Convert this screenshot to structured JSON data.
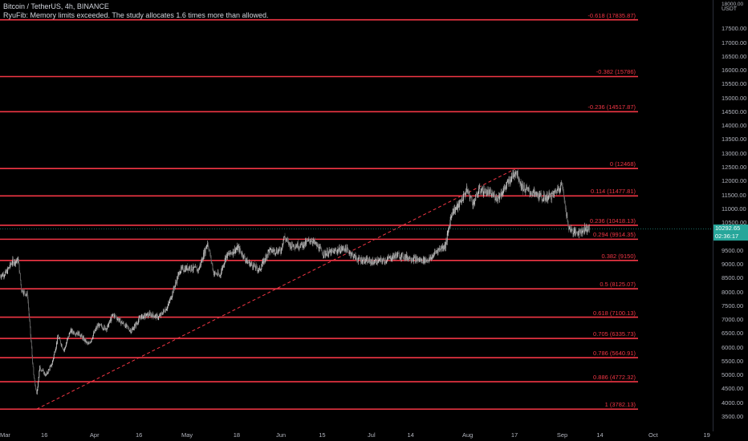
{
  "header": {
    "symbol": "Bitcoin / TetherUS, 4h, BINANCE",
    "study_warning": "RyuFib: Memory limits exceeded. The study allocates 1.6 times more than allowed."
  },
  "price_axis": {
    "currency": "USDT",
    "top_label": "18000.00",
    "ticks": [
      {
        "price": 18000,
        "label": "18000.00"
      },
      {
        "price": 17500,
        "label": "17500.00"
      },
      {
        "price": 17000,
        "label": "17000.00"
      },
      {
        "price": 16500,
        "label": "16500.00"
      },
      {
        "price": 16000,
        "label": "16000.00"
      },
      {
        "price": 15500,
        "label": "15500.00"
      },
      {
        "price": 15000,
        "label": "15000.00"
      },
      {
        "price": 14500,
        "label": "14500.00"
      },
      {
        "price": 14000,
        "label": "14000.00"
      },
      {
        "price": 13500,
        "label": "13500.00"
      },
      {
        "price": 13000,
        "label": "13000.00"
      },
      {
        "price": 12500,
        "label": "12500.00"
      },
      {
        "price": 12000,
        "label": "12000.00"
      },
      {
        "price": 11500,
        "label": "11500.00"
      },
      {
        "price": 11000,
        "label": "11000.00"
      },
      {
        "price": 10500,
        "label": "10500.00"
      },
      {
        "price": 9500,
        "label": "9500.00"
      },
      {
        "price": 9000,
        "label": "9000.00"
      },
      {
        "price": 8500,
        "label": "8500.00"
      },
      {
        "price": 8000,
        "label": "8000.00"
      },
      {
        "price": 7500,
        "label": "7500.00"
      },
      {
        "price": 7000,
        "label": "7000.00"
      },
      {
        "price": 6500,
        "label": "6500.00"
      },
      {
        "price": 6000,
        "label": "6000.00"
      },
      {
        "price": 5500,
        "label": "5500.00"
      },
      {
        "price": 5000,
        "label": "5000.00"
      },
      {
        "price": 4500,
        "label": "4500.00"
      },
      {
        "price": 4000,
        "label": "4000.00"
      },
      {
        "price": 3500,
        "label": "3500.00"
      }
    ],
    "current_price": {
      "value": 10292.65,
      "label": "10292.65",
      "color": "#26a69a"
    },
    "countdown": {
      "label": "02:36:17",
      "color": "#26a69a"
    }
  },
  "time_axis": {
    "labels": [
      "Mar",
      "16",
      "Apr",
      "16",
      "May",
      "18",
      "Jun",
      "15",
      "Jul",
      "14",
      "Aug",
      "17",
      "Sep",
      "14",
      "Oct",
      "19"
    ]
  },
  "colors": {
    "fib_line": "#f23645",
    "candle_up": "#c8c8c8",
    "candle_down": "#6a6a6a",
    "background": "#000000"
  },
  "chart_data": {
    "type": "line",
    "title": "Bitcoin / TetherUS, 4h, BINANCE",
    "ylim": [
      3300,
      18300
    ],
    "x_categories": [
      "Mar",
      "16",
      "Apr",
      "16",
      "May",
      "18",
      "Jun",
      "15",
      "Jul",
      "14",
      "Aug",
      "17",
      "Sep",
      "14",
      "Oct",
      "19"
    ],
    "fib_levels": [
      {
        "level": "-0.618",
        "price": 17835.87,
        "label": "-0.618 (17835.87)"
      },
      {
        "level": "-0.382",
        "price": 15786,
        "label": "-0.382 (15786)"
      },
      {
        "level": "-0.236",
        "price": 14517.87,
        "label": "-0.236 (14517.87)"
      },
      {
        "level": "0",
        "price": 12468,
        "label": "0 (12468)"
      },
      {
        "level": "0.114",
        "price": 11477.81,
        "label": "0.114 (11477.81)"
      },
      {
        "level": "0.236",
        "price": 10418.13,
        "label": "0.236 (10418.13)"
      },
      {
        "level": "0.294",
        "price": 9914.35,
        "label": "0.294 (9914.35)"
      },
      {
        "level": "0.382",
        "price": 9150,
        "label": "0.382 (9150)"
      },
      {
        "level": "0.5",
        "price": 8125.07,
        "label": "0.5 (8125.07)"
      },
      {
        "level": "0.618",
        "price": 7100.13,
        "label": "0.618 (7100.13)"
      },
      {
        "level": "0.705",
        "price": 6335.73,
        "label": "0.705 (6335.73)"
      },
      {
        "level": "0.786",
        "price": 5640.91,
        "label": "0.786 (5640.91)"
      },
      {
        "level": "0.886",
        "price": 4772.32,
        "label": "0.886 (4772.32)"
      },
      {
        "level": "1",
        "price": 3782.13,
        "label": "1 (3782.13)"
      }
    ],
    "price_series": {
      "name": "BTCUSDT",
      "points": [
        [
          "Mar 1",
          8600
        ],
        [
          "Mar 3",
          8700
        ],
        [
          "Mar 5",
          9100
        ],
        [
          "Mar 7",
          9150
        ],
        [
          "Mar 8",
          8100
        ],
        [
          "Mar 10",
          7900
        ],
        [
          "Mar 12",
          5000
        ],
        [
          "Mar 13",
          4300
        ],
        [
          "Mar 14",
          5300
        ],
        [
          "Mar 16",
          5000
        ],
        [
          "Mar 18",
          5400
        ],
        [
          "Mar 20",
          6400
        ],
        [
          "Mar 22",
          5900
        ],
        [
          "Mar 24",
          6600
        ],
        [
          "Mar 27",
          6500
        ],
        [
          "Mar 30",
          6100
        ],
        [
          "Apr 2",
          6800
        ],
        [
          "Apr 5",
          6700
        ],
        [
          "Apr 7",
          7200
        ],
        [
          "Apr 10",
          6900
        ],
        [
          "Apr 13",
          6600
        ],
        [
          "Apr 16",
          7100
        ],
        [
          "Apr 19",
          7200
        ],
        [
          "Apr 22",
          7100
        ],
        [
          "Apr 25",
          7500
        ],
        [
          "Apr 29",
          8800
        ],
        [
          "May 2",
          8900
        ],
        [
          "May 5",
          8800
        ],
        [
          "May 8",
          9800
        ],
        [
          "May 10",
          8700
        ],
        [
          "May 12",
          8600
        ],
        [
          "May 14",
          9300
        ],
        [
          "May 18",
          9600
        ],
        [
          "May 21",
          9100
        ],
        [
          "May 25",
          8800
        ],
        [
          "May 28",
          9500
        ],
        [
          "Jun 1",
          9500
        ],
        [
          "Jun 2",
          10000
        ],
        [
          "Jun 4",
          9700
        ],
        [
          "Jun 8",
          9700
        ],
        [
          "Jun 11",
          9900
        ],
        [
          "Jun 15",
          9400
        ],
        [
          "Jun 18",
          9450
        ],
        [
          "Jun 22",
          9600
        ],
        [
          "Jun 26",
          9200
        ],
        [
          "Jul 1",
          9100
        ],
        [
          "Jul 5",
          9150
        ],
        [
          "Jul 9",
          9350
        ],
        [
          "Jul 13",
          9250
        ],
        [
          "Jul 17",
          9150
        ],
        [
          "Jul 20",
          9200
        ],
        [
          "Jul 22",
          9500
        ],
        [
          "Jul 25",
          9700
        ],
        [
          "Jul 27",
          10900
        ],
        [
          "Jul 29",
          11100
        ],
        [
          "Aug 1",
          11700
        ],
        [
          "Aug 3",
          11200
        ],
        [
          "Aug 5",
          11700
        ],
        [
          "Aug 8",
          11600
        ],
        [
          "Aug 11",
          11400
        ],
        [
          "Aug 13",
          11700
        ],
        [
          "Aug 17",
          12400
        ],
        [
          "Aug 19",
          11800
        ],
        [
          "Aug 22",
          11600
        ],
        [
          "Aug 26",
          11400
        ],
        [
          "Aug 29",
          11500
        ],
        [
          "Sep 1",
          11900
        ],
        [
          "Sep 2",
          11300
        ],
        [
          "Sep 3",
          10400
        ],
        [
          "Sep 5",
          10150
        ],
        [
          "Sep 7",
          10200
        ],
        [
          "Sep 9",
          10300
        ],
        [
          "Sep 10",
          10292.65
        ]
      ]
    },
    "trend_line": {
      "from": [
        "Mar 13",
        3782.13
      ],
      "to": [
        "Aug 17",
        12468
      ],
      "style": "dashed"
    }
  }
}
